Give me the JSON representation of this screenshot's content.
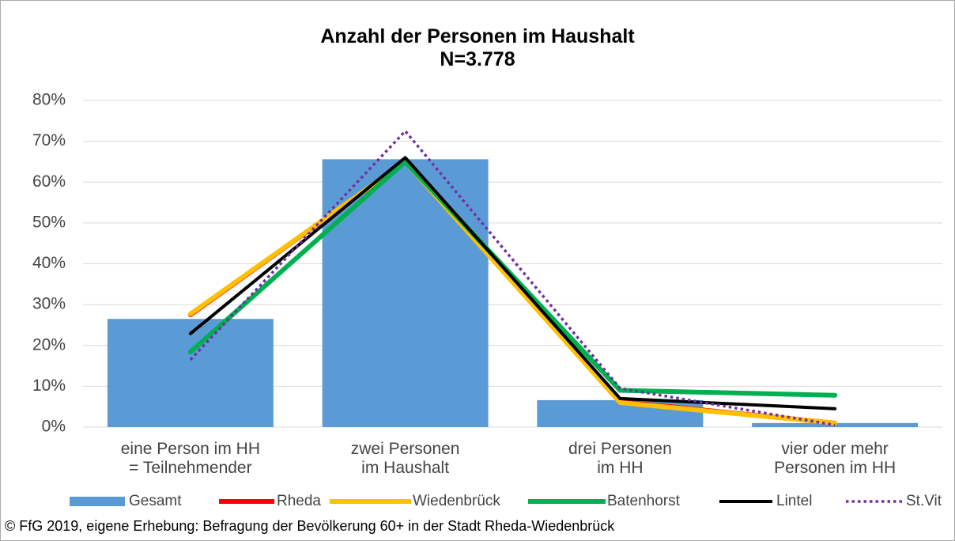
{
  "chart_data": {
    "type": "bar_line",
    "title": "Anzahl der Personen im Haushalt",
    "subtitle": "N=3.778",
    "categories": [
      "eine Person im HH\n= Teilnehmender",
      "zwei Personen\nim Haushalt",
      "drei Personen\nim HH",
      "vier oder mehr\nPersonen im HH"
    ],
    "series": [
      {
        "name": "Gesamt",
        "type": "bar",
        "color": "#5b9bd5",
        "values": [
          26.5,
          65.6,
          6.6,
          1.0
        ]
      },
      {
        "name": "Rheda",
        "type": "line",
        "color": "#ff0000",
        "values": [
          27.5,
          65.0,
          6.2,
          1.0
        ]
      },
      {
        "name": "Wiedenbrück",
        "type": "line",
        "color": "#ffc000",
        "values": [
          27.7,
          65.0,
          6.0,
          1.0
        ]
      },
      {
        "name": "Batenhorst",
        "type": "line",
        "color": "#00b050",
        "values": [
          18.4,
          65.0,
          9.0,
          7.8
        ]
      },
      {
        "name": "Lintel",
        "type": "line",
        "color": "#000000",
        "values": [
          22.9,
          66.0,
          7.0,
          4.5
        ]
      },
      {
        "name": "St.Vit",
        "type": "line",
        "color": "#7030a0",
        "style": "dotted",
        "values": [
          16.5,
          72.5,
          9.5,
          0.5
        ]
      }
    ],
    "ylim": [
      0,
      80
    ],
    "yticks": [
      {
        "value": 0,
        "label": "0%"
      },
      {
        "value": 10,
        "label": "10%"
      },
      {
        "value": 20,
        "label": "20%"
      },
      {
        "value": 30,
        "label": "30%"
      },
      {
        "value": 40,
        "label": "40%"
      },
      {
        "value": 50,
        "label": "50%"
      },
      {
        "value": 60,
        "label": "60%"
      },
      {
        "value": 70,
        "label": "70%"
      },
      {
        "value": 80,
        "label": "80%"
      }
    ],
    "grid": true,
    "legend": "bottom",
    "source": "© FfG 2019, eigene Erhebung: Befragung der Bevölkerung 60+ in der Stadt Rheda-Wiedenbrück"
  }
}
